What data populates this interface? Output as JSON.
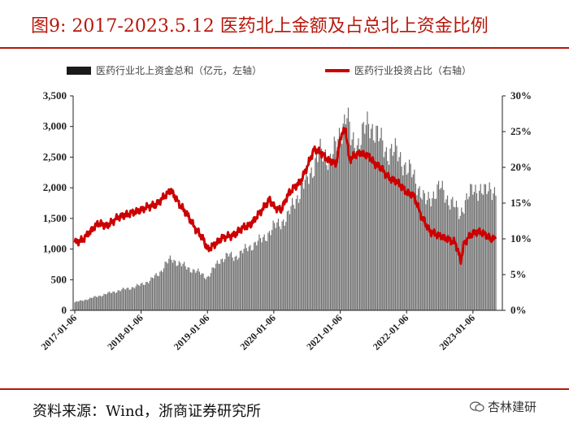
{
  "title": "图9:    2017-2023.5.12 医药北上金额及占总北上资金比例",
  "source": "资料来源：Wind，浙商证券研究所",
  "watermark": "杏林建研",
  "colors": {
    "accent": "#b8170b",
    "bars": "#6f6f6f",
    "line": "#cc0000"
  },
  "chart_data": {
    "type": "bar+line",
    "legend_position": "top",
    "grid": false,
    "x_tick_labels": [
      "2017-01-06",
      "2018-01-06",
      "2019-01-06",
      "2020-01-06",
      "2021-01-06",
      "2022-01-06",
      "2023-01-06"
    ],
    "x_range": [
      "2017-01-06",
      "2023-05-12"
    ],
    "left_axis": {
      "ticks": [
        "0",
        "500",
        "1,000",
        "1,500",
        "2,000",
        "2,500",
        "3,000",
        "3,500"
      ],
      "ylim": [
        0,
        3500
      ]
    },
    "right_axis": {
      "ticks": [
        "0%",
        "5%",
        "10%",
        "15%",
        "20%",
        "25%",
        "30%"
      ],
      "ylim": [
        0,
        0.3
      ]
    },
    "series": [
      {
        "name": "医药行业北上资金总和（亿元，左轴）",
        "type": "bar",
        "axis": "left",
        "points": [
          [
            "2017-01-06",
            130
          ],
          [
            "2017-03-01",
            170
          ],
          [
            "2017-05-01",
            220
          ],
          [
            "2017-07-01",
            270
          ],
          [
            "2017-09-01",
            320
          ],
          [
            "2017-11-01",
            360
          ],
          [
            "2018-01-01",
            410
          ],
          [
            "2018-03-01",
            500
          ],
          [
            "2018-04-15",
            600
          ],
          [
            "2018-05-20",
            760
          ],
          [
            "2018-06-20",
            830
          ],
          [
            "2018-08-01",
            780
          ],
          [
            "2018-09-15",
            690
          ],
          [
            "2018-11-01",
            650
          ],
          [
            "2018-12-15",
            570
          ],
          [
            "2019-01-06",
            540
          ],
          [
            "2019-02-15",
            700
          ],
          [
            "2019-03-15",
            820
          ],
          [
            "2019-05-01",
            900
          ],
          [
            "2019-06-01",
            860
          ],
          [
            "2019-07-15",
            950
          ],
          [
            "2019-09-01",
            1050
          ],
          [
            "2019-11-01",
            1150
          ],
          [
            "2020-01-06",
            1350
          ],
          [
            "2020-02-15",
            1450
          ],
          [
            "2020-03-20",
            1500
          ],
          [
            "2020-05-01",
            1800
          ],
          [
            "2020-06-15",
            2000
          ],
          [
            "2020-08-01",
            2300
          ],
          [
            "2020-09-15",
            2550
          ],
          [
            "2020-10-15",
            2550
          ],
          [
            "2020-11-15",
            2480
          ],
          [
            "2020-12-15",
            2650
          ],
          [
            "2021-01-15",
            3000
          ],
          [
            "2021-02-10",
            3250
          ],
          [
            "2021-03-05",
            2750
          ],
          [
            "2021-04-01",
            2700
          ],
          [
            "2021-05-15",
            2900
          ],
          [
            "2021-06-15",
            3050
          ],
          [
            "2021-07-15",
            2950
          ],
          [
            "2021-08-15",
            2750
          ],
          [
            "2021-09-15",
            2600
          ],
          [
            "2021-10-15",
            2600
          ],
          [
            "2021-11-15",
            2550
          ],
          [
            "2021-12-15",
            2450
          ],
          [
            "2022-01-06",
            2300
          ],
          [
            "2022-02-15",
            2200
          ],
          [
            "2022-03-15",
            2000
          ],
          [
            "2022-04-20",
            1750
          ],
          [
            "2022-06-01",
            1900
          ],
          [
            "2022-07-10",
            2000
          ],
          [
            "2022-08-15",
            1850
          ],
          [
            "2022-09-15",
            1750
          ],
          [
            "2022-10-25",
            1550
          ],
          [
            "2022-11-25",
            1800
          ],
          [
            "2023-01-06",
            1950
          ],
          [
            "2023-02-15",
            2000
          ],
          [
            "2023-03-15",
            1900
          ],
          [
            "2023-04-15",
            2000
          ],
          [
            "2023-05-12",
            1950
          ]
        ]
      },
      {
        "name": "医药行业投资占比（右轴）",
        "type": "line",
        "axis": "right",
        "points": [
          [
            "2017-01-06",
            0.095
          ],
          [
            "2017-02-15",
            0.098
          ],
          [
            "2017-04-01",
            0.11
          ],
          [
            "2017-05-15",
            0.122
          ],
          [
            "2017-07-01",
            0.118
          ],
          [
            "2017-09-01",
            0.13
          ],
          [
            "2017-11-01",
            0.135
          ],
          [
            "2018-01-01",
            0.14
          ],
          [
            "2018-02-15",
            0.145
          ],
          [
            "2018-04-01",
            0.148
          ],
          [
            "2018-05-15",
            0.16
          ],
          [
            "2018-06-20",
            0.168
          ],
          [
            "2018-08-01",
            0.15
          ],
          [
            "2018-09-15",
            0.135
          ],
          [
            "2018-10-30",
            0.115
          ],
          [
            "2018-12-15",
            0.1
          ],
          [
            "2019-01-06",
            0.085
          ],
          [
            "2019-02-15",
            0.092
          ],
          [
            "2019-04-01",
            0.102
          ],
          [
            "2019-06-01",
            0.105
          ],
          [
            "2019-07-15",
            0.115
          ],
          [
            "2019-09-01",
            0.12
          ],
          [
            "2019-11-01",
            0.14
          ],
          [
            "2019-12-15",
            0.155
          ],
          [
            "2020-01-06",
            0.145
          ],
          [
            "2020-02-15",
            0.14
          ],
          [
            "2020-04-01",
            0.165
          ],
          [
            "2020-06-01",
            0.18
          ],
          [
            "2020-07-15",
            0.205
          ],
          [
            "2020-08-15",
            0.225
          ],
          [
            "2020-09-15",
            0.222
          ],
          [
            "2020-11-01",
            0.21
          ],
          [
            "2020-12-15",
            0.205
          ],
          [
            "2021-01-10",
            0.245
          ],
          [
            "2021-02-05",
            0.253
          ],
          [
            "2021-02-25",
            0.21
          ],
          [
            "2021-04-01",
            0.218
          ],
          [
            "2021-05-01",
            0.22
          ],
          [
            "2021-06-15",
            0.215
          ],
          [
            "2021-07-15",
            0.205
          ],
          [
            "2021-08-15",
            0.2
          ],
          [
            "2021-10-01",
            0.185
          ],
          [
            "2021-11-15",
            0.18
          ],
          [
            "2022-01-06",
            0.165
          ],
          [
            "2022-02-15",
            0.16
          ],
          [
            "2022-04-01",
            0.13
          ],
          [
            "2022-05-15",
            0.11
          ],
          [
            "2022-07-01",
            0.105
          ],
          [
            "2022-08-15",
            0.1
          ],
          [
            "2022-10-01",
            0.095
          ],
          [
            "2022-10-31",
            0.07
          ],
          [
            "2022-11-20",
            0.095
          ],
          [
            "2023-01-06",
            0.108
          ],
          [
            "2023-02-15",
            0.11
          ],
          [
            "2023-03-20",
            0.105
          ],
          [
            "2023-04-15",
            0.1
          ],
          [
            "2023-05-12",
            0.1
          ]
        ]
      }
    ]
  }
}
